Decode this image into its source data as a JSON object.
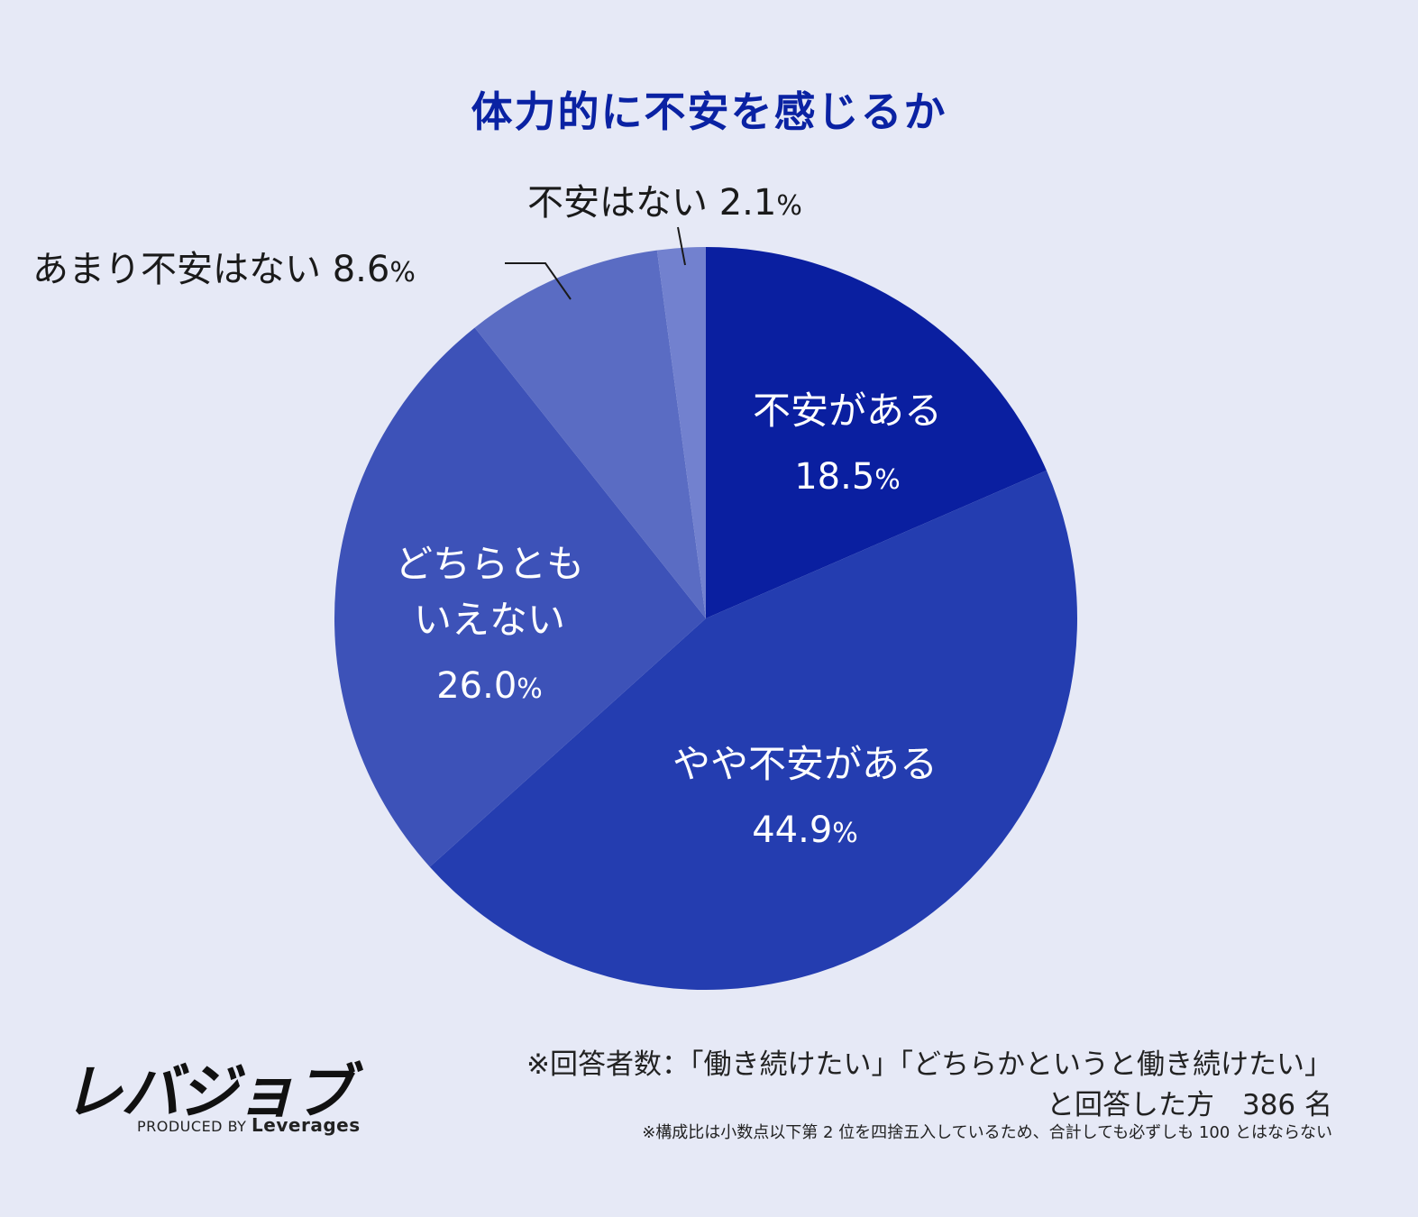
{
  "chart_data": {
    "type": "pie",
    "title": "体力的に不安を感じるか",
    "unit": "%",
    "series": [
      {
        "name": "不安がある",
        "value": 18.5,
        "value_label": "18.5",
        "color": "#0a1fa0",
        "placement": "inside"
      },
      {
        "name": "やや不安がある",
        "value": 44.9,
        "value_label": "44.9",
        "color": "#243db0",
        "placement": "inside"
      },
      {
        "name": "どちらとも\nいえない",
        "value": 26.0,
        "value_label": "26.0",
        "color": "#3d52b8",
        "placement": "inside"
      },
      {
        "name": "あまり不安はない",
        "value": 8.6,
        "value_label": "8.6",
        "color": "#5a6cc3",
        "placement": "outside"
      },
      {
        "name": "不安はない",
        "value": 2.1,
        "value_label": "2.1",
        "color": "#7281cf",
        "placement": "outside"
      }
    ],
    "start": "top",
    "direction": "clockwise"
  },
  "footer": {
    "logo": "レバジョブ",
    "produced_by": "PRODUCED BY",
    "brand": "Leverages",
    "note_line1": "※回答者数：「働き続けたい」「どちらかというと働き続けたい」",
    "note_line2": "と回答した方　386 名",
    "note_line3": "※構成比は小数点以下第 2 位を四捨五入しているため、合計しても必ずしも 100 とはならない"
  }
}
